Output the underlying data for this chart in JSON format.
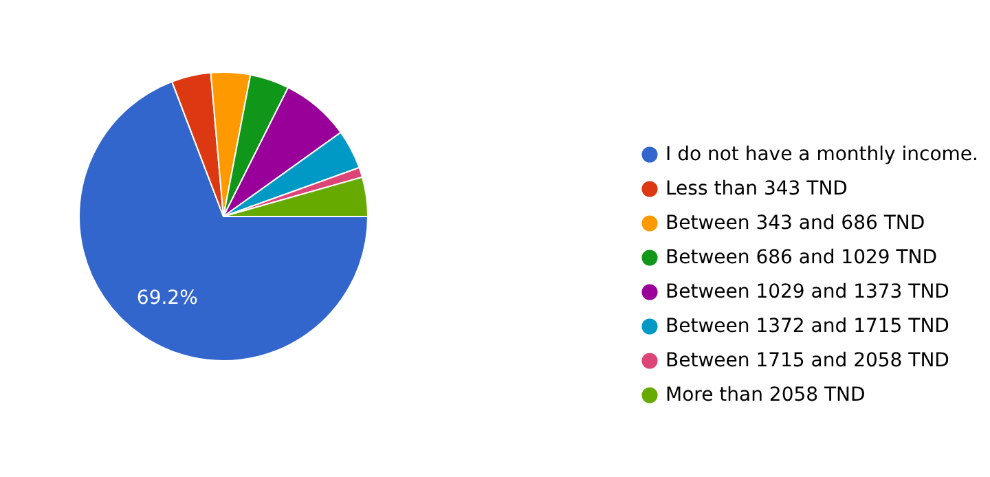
{
  "chart_data": {
    "type": "pie",
    "categories": [
      "I do not have a monthly income.",
      "Less than 343 TND",
      "Between  343 and 686 TND",
      "Between  686 and 1029 TND",
      "Between  1029 and 1373 TND",
      "Between  1372 and 1715 TND",
      "Between  1715 and 2058 TND",
      "More than 2058 TND"
    ],
    "values": [
      69.2,
      4.4,
      4.4,
      4.4,
      7.7,
      4.4,
      1.1,
      4.4
    ],
    "colors": [
      "#3366cc",
      "#dc3912",
      "#ff9900",
      "#109618",
      "#990099",
      "#0099c6",
      "#dd4477",
      "#66aa00"
    ],
    "value_labels": [
      "69.2%",
      null,
      null,
      null,
      null,
      null,
      null,
      null
    ],
    "legend": "right"
  }
}
